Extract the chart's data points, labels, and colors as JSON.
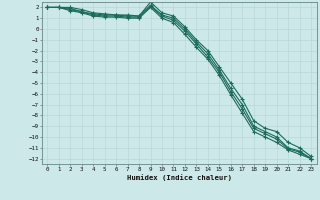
{
  "xlabel": "Humidex (Indice chaleur)",
  "ylabel": "",
  "bg_color": "#cce8e8",
  "grid_color": "#b8d8d8",
  "line_color": "#1a6b5a",
  "xlim": [
    -0.5,
    23.5
  ],
  "ylim": [
    -12.5,
    2.5
  ],
  "xticks": [
    0,
    1,
    2,
    3,
    4,
    5,
    6,
    7,
    8,
    9,
    10,
    11,
    12,
    13,
    14,
    15,
    16,
    17,
    18,
    19,
    20,
    21,
    22,
    23
  ],
  "yticks": [
    2,
    1,
    0,
    -1,
    -2,
    -3,
    -4,
    -5,
    -6,
    -7,
    -8,
    -9,
    -10,
    -11,
    -12
  ],
  "series": [
    [
      2.0,
      2.0,
      2.0,
      1.8,
      1.5,
      1.4,
      1.3,
      1.3,
      1.2,
      2.5,
      1.5,
      1.2,
      0.2,
      -1.0,
      -2.0,
      -3.5,
      -5.0,
      -6.5,
      -8.5,
      -9.2,
      -9.5,
      -10.5,
      -11.0,
      -11.8
    ],
    [
      2.0,
      2.0,
      1.9,
      1.6,
      1.4,
      1.3,
      1.3,
      1.2,
      1.2,
      2.2,
      1.3,
      1.0,
      0.0,
      -1.2,
      -2.3,
      -3.8,
      -5.5,
      -7.0,
      -9.0,
      -9.5,
      -10.0,
      -11.0,
      -11.3,
      -12.0
    ],
    [
      2.0,
      2.0,
      1.8,
      1.6,
      1.3,
      1.2,
      1.2,
      1.1,
      1.1,
      2.1,
      1.2,
      0.8,
      -0.2,
      -1.4,
      -2.6,
      -4.0,
      -5.8,
      -7.4,
      -9.2,
      -9.7,
      -10.2,
      -11.1,
      -11.4,
      -12.0
    ],
    [
      2.0,
      2.0,
      1.7,
      1.5,
      1.2,
      1.1,
      1.1,
      1.0,
      1.0,
      2.0,
      1.0,
      0.6,
      -0.5,
      -1.7,
      -2.8,
      -4.3,
      -6.1,
      -7.8,
      -9.5,
      -10.0,
      -10.5,
      -11.2,
      -11.6,
      -12.0
    ]
  ]
}
